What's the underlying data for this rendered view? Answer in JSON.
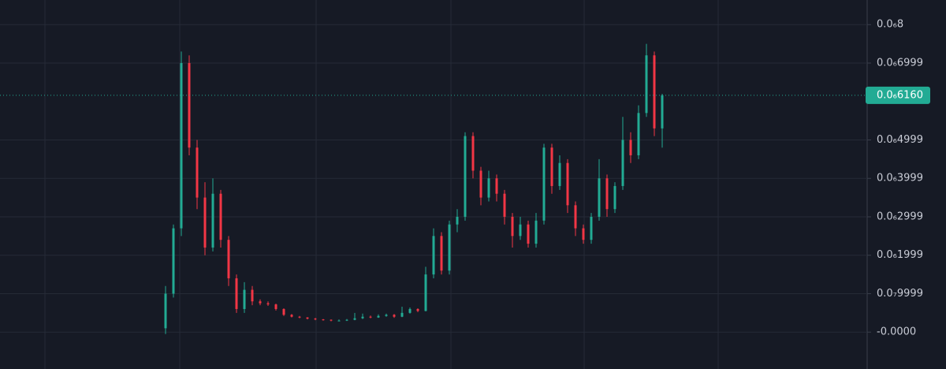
{
  "chart_data": {
    "type": "candlestick",
    "up_color": "#22ab94",
    "down_color": "#f23645",
    "ylim": [
      -9.6e-08,
      8.64e-07
    ],
    "yticks": [
      {
        "value": 8e-07,
        "label": "0.0₆8"
      },
      {
        "value": 6.999e-07,
        "label": "0.0₆6999"
      },
      {
        "value": 4.999e-07,
        "label": "0.0₆4999"
      },
      {
        "value": 3.999e-07,
        "label": "0.0₆3999"
      },
      {
        "value": 2.999e-07,
        "label": "0.0₆2999"
      },
      {
        "value": 1.999e-07,
        "label": "0.0₆1999"
      },
      {
        "value": 9.999e-08,
        "label": "0.0₇9999"
      },
      {
        "value": 0,
        "label": "-0.0000"
      }
    ],
    "grid": true,
    "last_price": {
      "value": 6.16e-07,
      "label": "0.0₆6160"
    },
    "open": [
      1e-08,
      1e-07,
      2.7e-07,
      7e-07,
      4.8e-07,
      3.5e-07,
      2.2e-07,
      3.6e-07,
      2.4e-07,
      1.4e-07,
      6e-08,
      1.1e-07,
      8e-08,
      7.5e-08,
      7.2e-08,
      6e-08,
      4.5e-08,
      4e-08,
      3.8e-08,
      3.5e-08,
      3.3e-08,
      3.2e-08,
      3e-08,
      3e-08,
      3.2e-08,
      3.6e-08,
      4e-08,
      3.8e-08,
      4.2e-08,
      4.5e-08,
      4e-08,
      5e-08,
      6e-08,
      5.5e-08,
      1.5e-07,
      2.5e-07,
      1.6e-07,
      2.8e-07,
      3e-07,
      5.1e-07,
      4.2e-07,
      3.5e-07,
      4e-07,
      3.6e-07,
      3e-07,
      2.5e-07,
      2.8e-07,
      2.3e-07,
      2.9e-07,
      4.8e-07,
      3.8e-07,
      4.4e-07,
      3.3e-07,
      2.7e-07,
      2.4e-07,
      3e-07,
      4e-07,
      3.2e-07,
      3.8e-07,
      5e-07,
      4.6e-07,
      5.7e-07,
      7.2e-07,
      5.3e-07
    ],
    "high": [
      1.2e-07,
      2.8e-07,
      7.3e-07,
      7.2e-07,
      5e-07,
      3.9e-07,
      4e-07,
      3.7e-07,
      2.5e-07,
      1.5e-07,
      1.3e-07,
      1.2e-07,
      8.5e-08,
      8e-08,
      7.4e-08,
      6.2e-08,
      4.7e-08,
      4.2e-08,
      3.9e-08,
      3.7e-08,
      3.4e-08,
      3.3e-08,
      3.3e-08,
      3.4e-08,
      5e-08,
      4.8e-08,
      4.3e-08,
      4.6e-08,
      4.8e-08,
      4.7e-08,
      6.6e-08,
      6.4e-08,
      6.2e-08,
      1.7e-07,
      2.7e-07,
      2.6e-07,
      2.9e-07,
      3.2e-07,
      5.2e-07,
      5.2e-07,
      4.3e-07,
      4.2e-07,
      4.1e-07,
      3.7e-07,
      3.1e-07,
      3e-07,
      2.9e-07,
      3.1e-07,
      4.9e-07,
      4.9e-07,
      4.6e-07,
      4.5e-07,
      3.4e-07,
      2.8e-07,
      3.1e-07,
      4.5e-07,
      4.1e-07,
      3.9e-07,
      5.6e-07,
      5.2e-07,
      5.9e-07,
      7.5e-07,
      7.3e-07,
      6.2e-07
    ],
    "low": [
      -5e-09,
      9e-08,
      2.5e-07,
      4.6e-07,
      3.2e-07,
      2e-07,
      2.1e-07,
      2.2e-07,
      1.2e-07,
      5e-08,
      5e-08,
      7e-08,
      7e-08,
      6.8e-08,
      5.6e-08,
      4.2e-08,
      3.8e-08,
      3.6e-08,
      3.3e-08,
      3.1e-08,
      3e-08,
      2.8e-08,
      2.8e-08,
      2.9e-08,
      3.1e-08,
      3.4e-08,
      3.6e-08,
      3.7e-08,
      4e-08,
      3.7e-08,
      3.9e-08,
      4.8e-08,
      5.2e-08,
      5.4e-08,
      1.4e-07,
      1.5e-07,
      1.5e-07,
      2.6e-07,
      2.9e-07,
      4e-07,
      3.3e-07,
      3.4e-07,
      3.4e-07,
      2.8e-07,
      2.2e-07,
      2.4e-07,
      2.2e-07,
      2.2e-07,
      2.8e-07,
      3.6e-07,
      3.7e-07,
      3.1e-07,
      2.5e-07,
      2.3e-07,
      2.3e-07,
      2.9e-07,
      3e-07,
      3.1e-07,
      3.7e-07,
      4.4e-07,
      4.5e-07,
      5.6e-07,
      5.1e-07,
      4.8e-07
    ],
    "close": [
      1e-07,
      2.7e-07,
      7e-07,
      4.8e-07,
      3.5e-07,
      2.2e-07,
      3.6e-07,
      2.4e-07,
      1.4e-07,
      6e-08,
      1.1e-07,
      8e-08,
      7.5e-08,
      7.2e-08,
      6e-08,
      4.5e-08,
      4e-08,
      3.8e-08,
      3.5e-08,
      3.3e-08,
      3.2e-08,
      3e-08,
      3e-08,
      3.2e-08,
      3.6e-08,
      4e-08,
      3.8e-08,
      4.2e-08,
      4.5e-08,
      4e-08,
      5e-08,
      6e-08,
      5.5e-08,
      1.5e-07,
      2.5e-07,
      1.6e-07,
      2.8e-07,
      3e-07,
      5.1e-07,
      4.2e-07,
      3.5e-07,
      4e-07,
      3.6e-07,
      3e-07,
      2.5e-07,
      2.8e-07,
      2.3e-07,
      2.9e-07,
      4.8e-07,
      3.8e-07,
      4.4e-07,
      3.3e-07,
      2.7e-07,
      2.4e-07,
      3e-07,
      4e-07,
      3.2e-07,
      3.8e-07,
      5e-07,
      4.6e-07,
      5.7e-07,
      7.2e-07,
      5.3e-07,
      6.16e-07
    ]
  }
}
